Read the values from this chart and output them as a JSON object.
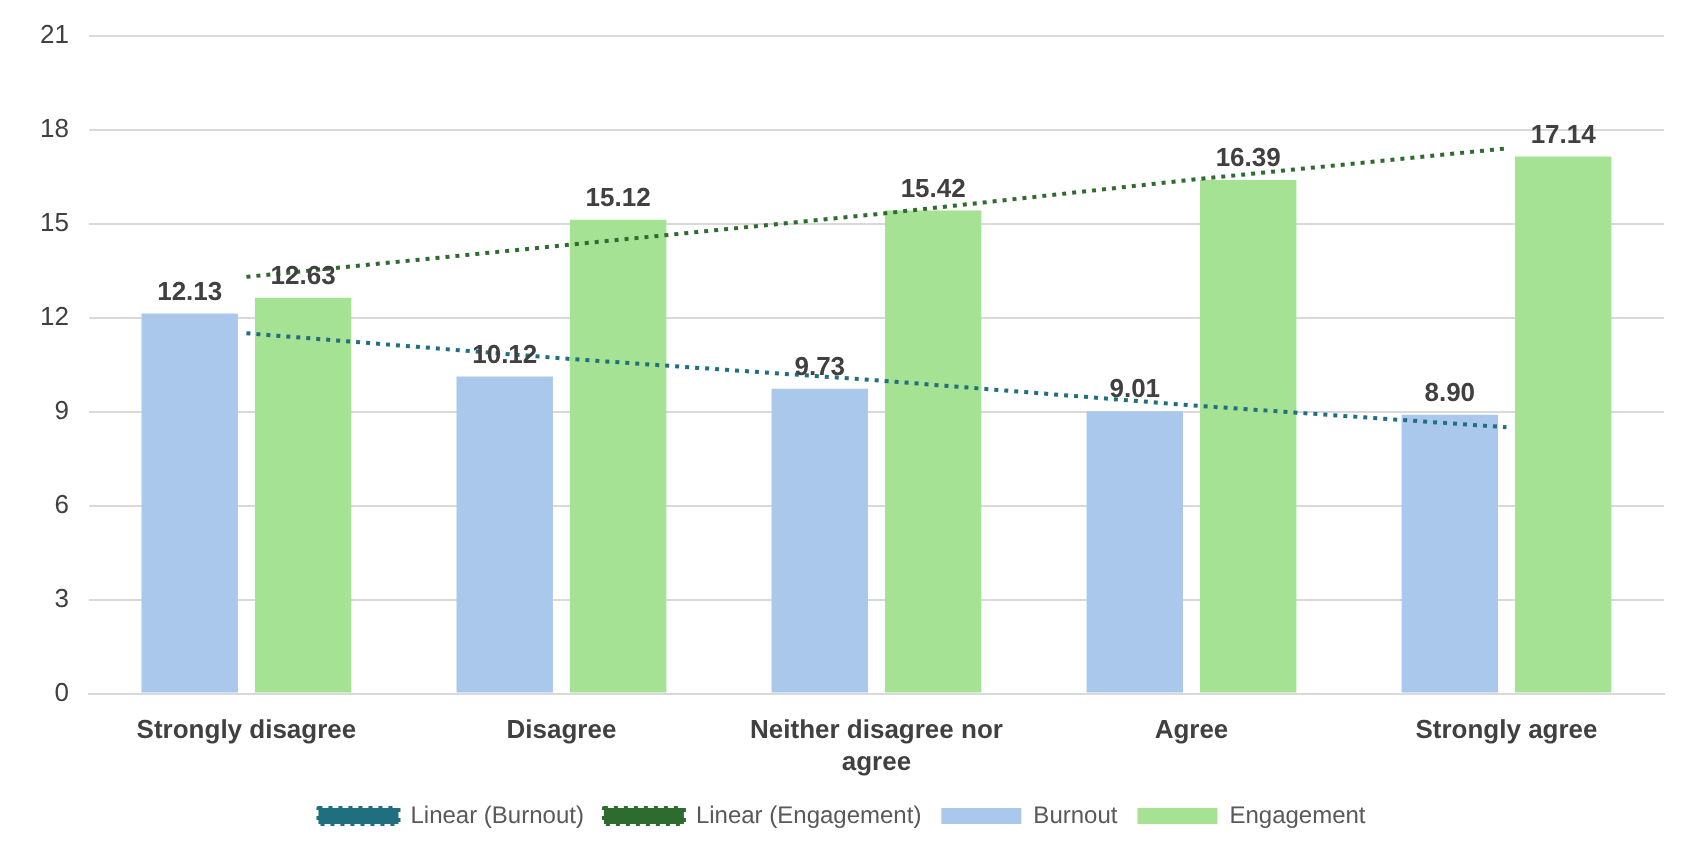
{
  "chart_data": {
    "type": "bar",
    "categories": [
      "Strongly disagree",
      "Disagree",
      "Neither disagree nor agree",
      "Agree",
      "Strongly agree"
    ],
    "series": [
      {
        "name": "Burnout",
        "color": "#a9c8ec",
        "values": [
          12.13,
          10.12,
          9.73,
          9.01,
          8.9
        ],
        "value_labels": [
          "12.13",
          "10.12",
          "9.73",
          "9.01",
          "8.90"
        ]
      },
      {
        "name": "Engagement",
        "color": "#a6e293",
        "values": [
          12.63,
          15.12,
          15.42,
          16.39,
          17.14
        ],
        "value_labels": [
          "12.63",
          "15.12",
          "15.42",
          "16.39",
          "17.14"
        ]
      },
      {
        "name": "Linear (Burnout)",
        "type": "line",
        "color": "#1f6f7f",
        "line_style": "dotted",
        "x": [
          "Strongly disagree",
          "Disagree",
          "Neither disagree nor agree",
          "Agree",
          "Strongly agree"
        ],
        "values": [
          11.5,
          10.7,
          10.0,
          9.2,
          8.5
        ]
      },
      {
        "name": "Linear (Engagement)",
        "type": "line",
        "color": "#2e6b2e",
        "line_style": "dotted",
        "x": [
          "Strongly disagree",
          "Disagree",
          "Neither disagree nor agree",
          "Agree",
          "Strongly agree"
        ],
        "values": [
          13.3,
          14.3,
          15.3,
          16.4,
          17.4
        ]
      }
    ],
    "ylim": [
      0,
      21
    ],
    "yticks": [
      0,
      3,
      6,
      9,
      12,
      15,
      18,
      21
    ],
    "grid": "y",
    "legend": "bottom",
    "marker": "none"
  }
}
